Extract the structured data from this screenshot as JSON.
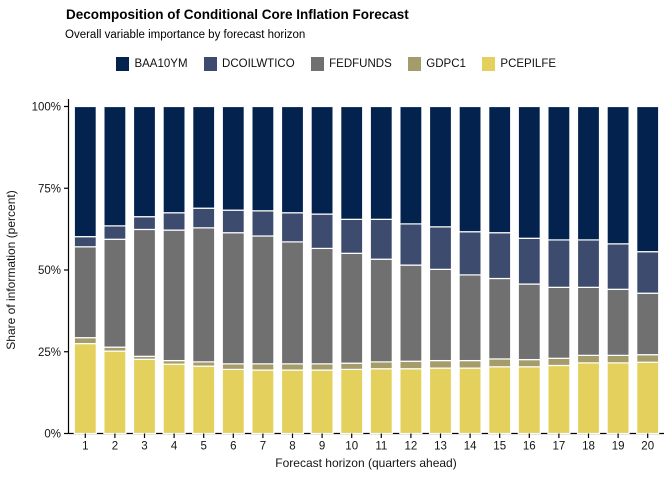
{
  "header": {
    "title": "Decomposition of Conditional Core Inflation Forecast",
    "subtitle": "Overall variable importance by forecast horizon"
  },
  "legend": {
    "items": [
      {
        "label": "BAA10YM",
        "color": "#03234e"
      },
      {
        "label": "DCOILWTICO",
        "color": "#3d4c6e"
      },
      {
        "label": "FEDFUNDS",
        "color": "#707070"
      },
      {
        "label": "GDPC1",
        "color": "#a49c6b"
      },
      {
        "label": "PCEPILFE",
        "color": "#e4d05c"
      }
    ]
  },
  "chart_data": {
    "type": "bar",
    "stacked": true,
    "normalized_percent": true,
    "title": "Decomposition of Conditional Core Inflation Forecast",
    "subtitle": "Overall variable importance by forecast horizon",
    "xlabel": "Forecast horizon (quarters ahead)",
    "ylabel": "Share of information (percent)",
    "legend_position": "top",
    "grid": false,
    "ylim": [
      0,
      100
    ],
    "y_tick_values": [
      0,
      25,
      50,
      75,
      100
    ],
    "y_ticks": [
      "0%",
      "25%",
      "50%",
      "75%",
      "100%"
    ],
    "categories": [
      1,
      2,
      3,
      4,
      5,
      6,
      7,
      8,
      9,
      10,
      11,
      12,
      13,
      14,
      15,
      16,
      17,
      18,
      19,
      20
    ],
    "stack_order_bottom_to_top": [
      "PCEPILFE",
      "GDPC1",
      "FEDFUNDS",
      "DCOILWTICO",
      "BAA10YM"
    ],
    "series": [
      {
        "name": "BAA10YM",
        "color": "#03234e",
        "values": [
          39.8,
          36.5,
          33.7,
          32.5,
          31.1,
          31.7,
          31.9,
          32.5,
          32.9,
          34.5,
          34.5,
          35.9,
          36.8,
          38.3,
          38.6,
          40.3,
          40.8,
          40.8,
          42.0,
          44.4
        ]
      },
      {
        "name": "DCOILWTICO",
        "color": "#3d4c6e",
        "values": [
          3.1,
          4.1,
          3.9,
          5.3,
          6.0,
          6.9,
          7.7,
          8.9,
          10.5,
          10.4,
          12.2,
          12.6,
          13.0,
          13.2,
          14.0,
          14.0,
          14.5,
          14.5,
          13.9,
          12.7
        ]
      },
      {
        "name": "FEDFUNDS",
        "color": "#707070",
        "values": [
          27.8,
          33.0,
          38.8,
          39.9,
          41.0,
          40.1,
          39.1,
          37.3,
          35.3,
          33.6,
          31.4,
          29.4,
          27.9,
          26.2,
          24.6,
          23.1,
          21.7,
          20.8,
          20.2,
          18.8
        ]
      },
      {
        "name": "GDPC1",
        "color": "#a49c6b",
        "values": [
          1.8,
          1.2,
          0.9,
          1.1,
          1.3,
          1.7,
          1.9,
          1.9,
          1.9,
          1.9,
          2.1,
          2.3,
          2.3,
          2.3,
          2.4,
          2.2,
          2.2,
          2.3,
          2.3,
          2.3
        ]
      },
      {
        "name": "PCEPILFE",
        "color": "#e4d05c",
        "values": [
          27.5,
          25.2,
          22.7,
          21.2,
          20.6,
          19.6,
          19.4,
          19.4,
          19.4,
          19.6,
          19.8,
          19.8,
          20.0,
          20.0,
          20.4,
          20.4,
          20.8,
          21.6,
          21.6,
          21.8
        ]
      }
    ]
  }
}
